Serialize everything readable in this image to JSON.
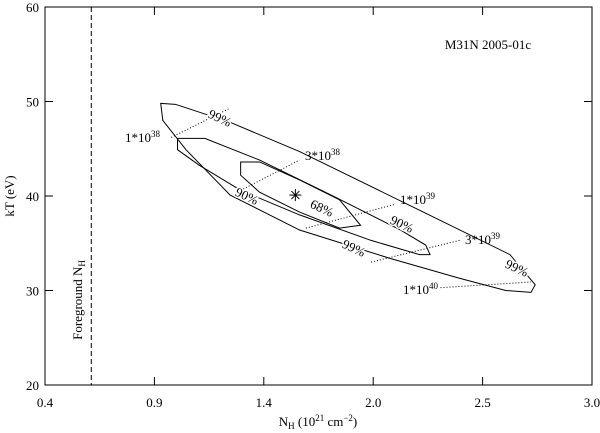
{
  "chart_data": {
    "type": "contour",
    "title": "M31N 2005-01c",
    "xlabel": {
      "base": "N",
      "sub": "H",
      "unit_open": " (10",
      "unit_exp": "21",
      "unit_mid": " cm",
      "unit_exp2": "−2",
      "unit_close": ")"
    },
    "ylabel": "kT (eV)",
    "xlim": [
      0.4,
      3.0
    ],
    "ylim": [
      20,
      60
    ],
    "xticks": [
      0.4,
      {
        "value": 0.92,
        "label": "0.9"
      },
      {
        "value": 1.44,
        "label": "1.4"
      },
      {
        "value": 1.96,
        "label": "2.0"
      },
      {
        "value": 2.48,
        "label": "2.5"
      },
      {
        "value": 3.0,
        "label": "3.0"
      }
    ],
    "yticks": [
      20,
      30,
      40,
      50,
      60
    ],
    "contours": [
      {
        "name": "68%",
        "x": [
          1.33,
          1.42,
          1.61,
          1.8,
          1.9,
          1.8,
          1.61,
          1.42,
          1.33
        ],
        "y": [
          43.6,
          43.6,
          41.7,
          39.6,
          36.9,
          36.6,
          38.3,
          40.4,
          42.2
        ]
      },
      {
        "name": "90%",
        "x": [
          1.03,
          1.16,
          1.42,
          1.76,
          2.09,
          2.21,
          2.23,
          2.18,
          1.95,
          1.61,
          1.33,
          1.13,
          1.03
        ],
        "y": [
          46.1,
          46.1,
          43.8,
          40.1,
          36.4,
          34.8,
          33.8,
          33.8,
          35.3,
          38.0,
          40.6,
          43.3,
          44.9
        ]
      },
      {
        "name": "99%",
        "x": [
          0.95,
          1.02,
          1.28,
          1.61,
          2.18,
          2.61,
          2.73,
          2.71,
          2.59,
          2.37,
          2.04,
          1.61,
          1.28,
          1.07,
          0.96
        ],
        "y": [
          49.8,
          49.7,
          47.8,
          44.7,
          38.5,
          33.8,
          30.6,
          29.8,
          30.0,
          31.3,
          33.4,
          36.4,
          40.1,
          44.9,
          48.0
        ]
      }
    ],
    "best_fit": {
      "x": 1.59,
      "y": 40.1
    },
    "isolines": [
      {
        "label": "1*10",
        "exponent": "38",
        "x": [
          1.0,
          1.28
        ],
        "y": [
          46.2,
          49.3
        ]
      },
      {
        "label": "3*10",
        "exponent": "38",
        "x": [
          1.33,
          1.61
        ],
        "y": [
          40.6,
          43.8
        ]
      },
      {
        "label": "1*10",
        "exponent": "39",
        "x": [
          1.64,
          2.06
        ],
        "y": [
          36.6,
          39.1
        ]
      },
      {
        "label": "3*10",
        "exponent": "39",
        "x": [
          1.95,
          2.37
        ],
        "y": [
          33.0,
          35.3
        ]
      },
      {
        "label": "1*10",
        "exponent": "40",
        "x": [
          2.28,
          2.71
        ],
        "y": [
          30.3,
          30.9
        ]
      }
    ],
    "foreground": {
      "label": "Foreground N",
      "sub": "H",
      "x": 0.62
    }
  }
}
